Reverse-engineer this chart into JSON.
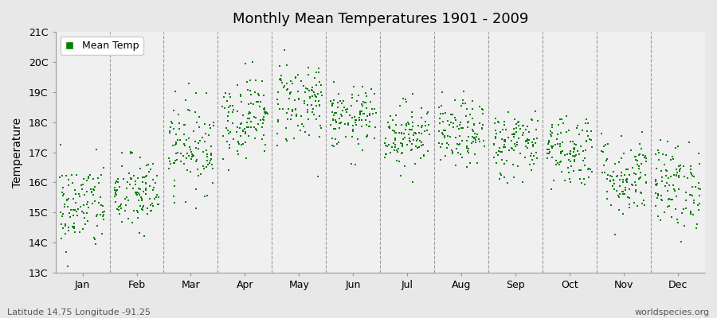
{
  "title": "Monthly Mean Temperatures 1901 - 2009",
  "ylabel": "Temperature",
  "subtitle": "Latitude 14.75 Longitude -91.25",
  "watermark": "worldspecies.org",
  "ylim": [
    13,
    21
  ],
  "yticks": [
    13,
    14,
    15,
    16,
    17,
    18,
    19,
    20,
    21
  ],
  "ytick_labels": [
    "13C",
    "14C",
    "15C",
    "16C",
    "17C",
    "18C",
    "19C",
    "20C",
    "21C"
  ],
  "months": [
    "Jan",
    "Feb",
    "Mar",
    "Apr",
    "May",
    "Jun",
    "Jul",
    "Aug",
    "Sep",
    "Oct",
    "Nov",
    "Dec"
  ],
  "dot_color": "#008000",
  "bg_color": "#e8e8e8",
  "plot_bg_color": "#f0f0f0",
  "legend_label": "Mean Temp",
  "n_years": 109,
  "monthly_means": [
    15.2,
    15.6,
    17.2,
    18.2,
    18.7,
    18.1,
    17.6,
    17.6,
    17.3,
    17.1,
    16.2,
    15.9
  ],
  "monthly_stds": [
    0.75,
    0.65,
    0.75,
    0.68,
    0.72,
    0.52,
    0.55,
    0.55,
    0.58,
    0.62,
    0.68,
    0.72
  ],
  "seed": 42,
  "dot_size": 4,
  "figsize": [
    9.0,
    4.0
  ],
  "dpi": 100
}
